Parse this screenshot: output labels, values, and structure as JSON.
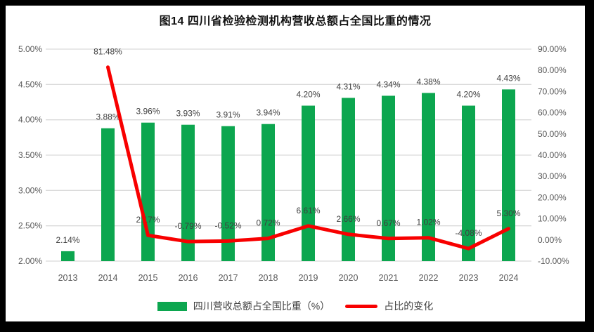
{
  "chart_data": {
    "type": "bar",
    "subtype": "combo-bar-line-dual-axis",
    "title": "图14  四川省检验检测机构营收总额占全国比重的情况",
    "categories": [
      "2013",
      "2014",
      "2015",
      "2016",
      "2017",
      "2018",
      "2019",
      "2020",
      "2021",
      "2022",
      "2023",
      "2024"
    ],
    "series": [
      {
        "name": "四川营收总额占全国比重（%）",
        "type": "bar",
        "axis": "left",
        "color": "#0CA64F",
        "values": [
          2.14,
          3.88,
          3.96,
          3.93,
          3.91,
          3.94,
          4.2,
          4.31,
          4.34,
          4.38,
          4.2,
          4.43
        ],
        "labels": [
          "2.14%",
          "3.88%",
          "3.96%",
          "3.93%",
          "3.91%",
          "3.94%",
          "4.20%",
          "4.31%",
          "4.34%",
          "4.38%",
          "4.20%",
          "4.43%"
        ]
      },
      {
        "name": "占比的变化",
        "type": "line",
        "axis": "right",
        "color": "#F80000",
        "values": [
          null,
          81.48,
          2.17,
          -0.79,
          -0.52,
          0.72,
          6.61,
          2.66,
          0.67,
          1.02,
          -4.08,
          5.3
        ],
        "labels": [
          null,
          "81.48%",
          "2.17%",
          "-0.79%",
          "-0.52%",
          "0.72%",
          "6.61%",
          "2.66%",
          "0.67%",
          "1.02%",
          "-4.08%",
          "5.30%"
        ]
      }
    ],
    "left_axis": {
      "min": 2.0,
      "max": 5.0,
      "step": 0.5,
      "tick_labels": [
        "5.00%",
        "4.50%",
        "4.00%",
        "3.50%",
        "3.00%",
        "2.50%",
        "2.00%"
      ]
    },
    "right_axis": {
      "min": -10.0,
      "max": 90.0,
      "step": 10.0,
      "tick_labels": [
        "90.00%",
        "80.00%",
        "70.00%",
        "60.00%",
        "50.00%",
        "40.00%",
        "30.00%",
        "20.00%",
        "10.00%",
        "0.00%",
        "-10.00%"
      ]
    },
    "grid": true,
    "legend_position": "bottom",
    "colors": {
      "background": "#ffffff",
      "frame": "#000000",
      "gridline": "#DADADA",
      "axis_text": "#595959",
      "data_label": "#3F3F3F"
    }
  }
}
